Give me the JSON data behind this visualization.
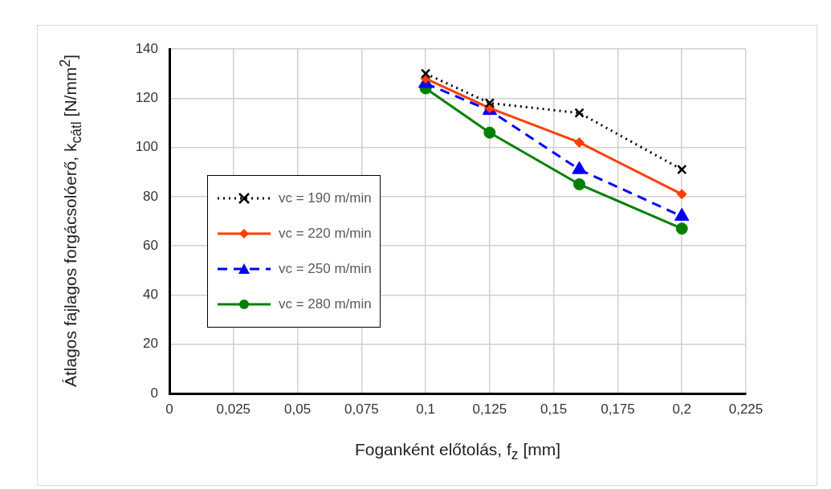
{
  "chart_data": {
    "type": "line",
    "xlabel": "Foganként előtolás, f$_{z}$ [mm]",
    "ylabel": "Átlagos fajlagos forgácsolóerő, k$_{cátl}$ [N/mm$^{2}$]",
    "x": [
      0.1,
      0.125,
      0.16,
      0.2
    ],
    "xlim": [
      0,
      0.225
    ],
    "xticks": [
      0,
      {
        "value": 0.025,
        "label": "0,025"
      },
      {
        "value": 0.05,
        "label": "0,05"
      },
      {
        "value": 0.075,
        "label": "0,075"
      },
      {
        "value": 0.1,
        "label": "0,1"
      },
      {
        "value": 0.125,
        "label": "0,125"
      },
      {
        "value": 0.15,
        "label": "0,15"
      },
      {
        "value": 0.175,
        "label": "0,175"
      },
      {
        "value": 0.2,
        "label": "0,2"
      },
      {
        "value": 0.225,
        "label": "0,225"
      }
    ],
    "ylim": [
      0,
      140
    ],
    "yticks": [
      0,
      20,
      40,
      60,
      80,
      100,
      120,
      140
    ],
    "grid": true,
    "legend": "left",
    "series": [
      {
        "name": "vc = 190 m/min",
        "color": "#000000",
        "values": [
          130,
          118,
          114,
          91
        ],
        "marker": "cross",
        "line_style": "dotted"
      },
      {
        "name": "vc = 220 m/min",
        "color": "#ff3f00",
        "values": [
          128,
          116,
          102,
          81
        ],
        "marker": "diamond",
        "line_style": "solid"
      },
      {
        "name": "vc = 250 m/min",
        "color": "#0000ff",
        "values": [
          126,
          115,
          91,
          72
        ],
        "marker": "triangle",
        "line_style": "dashed"
      },
      {
        "name": "vc = 280 m/min",
        "color": "#008000",
        "values": [
          124,
          106,
          85,
          67
        ],
        "marker": "circle",
        "line_style": "solid"
      }
    ]
  }
}
